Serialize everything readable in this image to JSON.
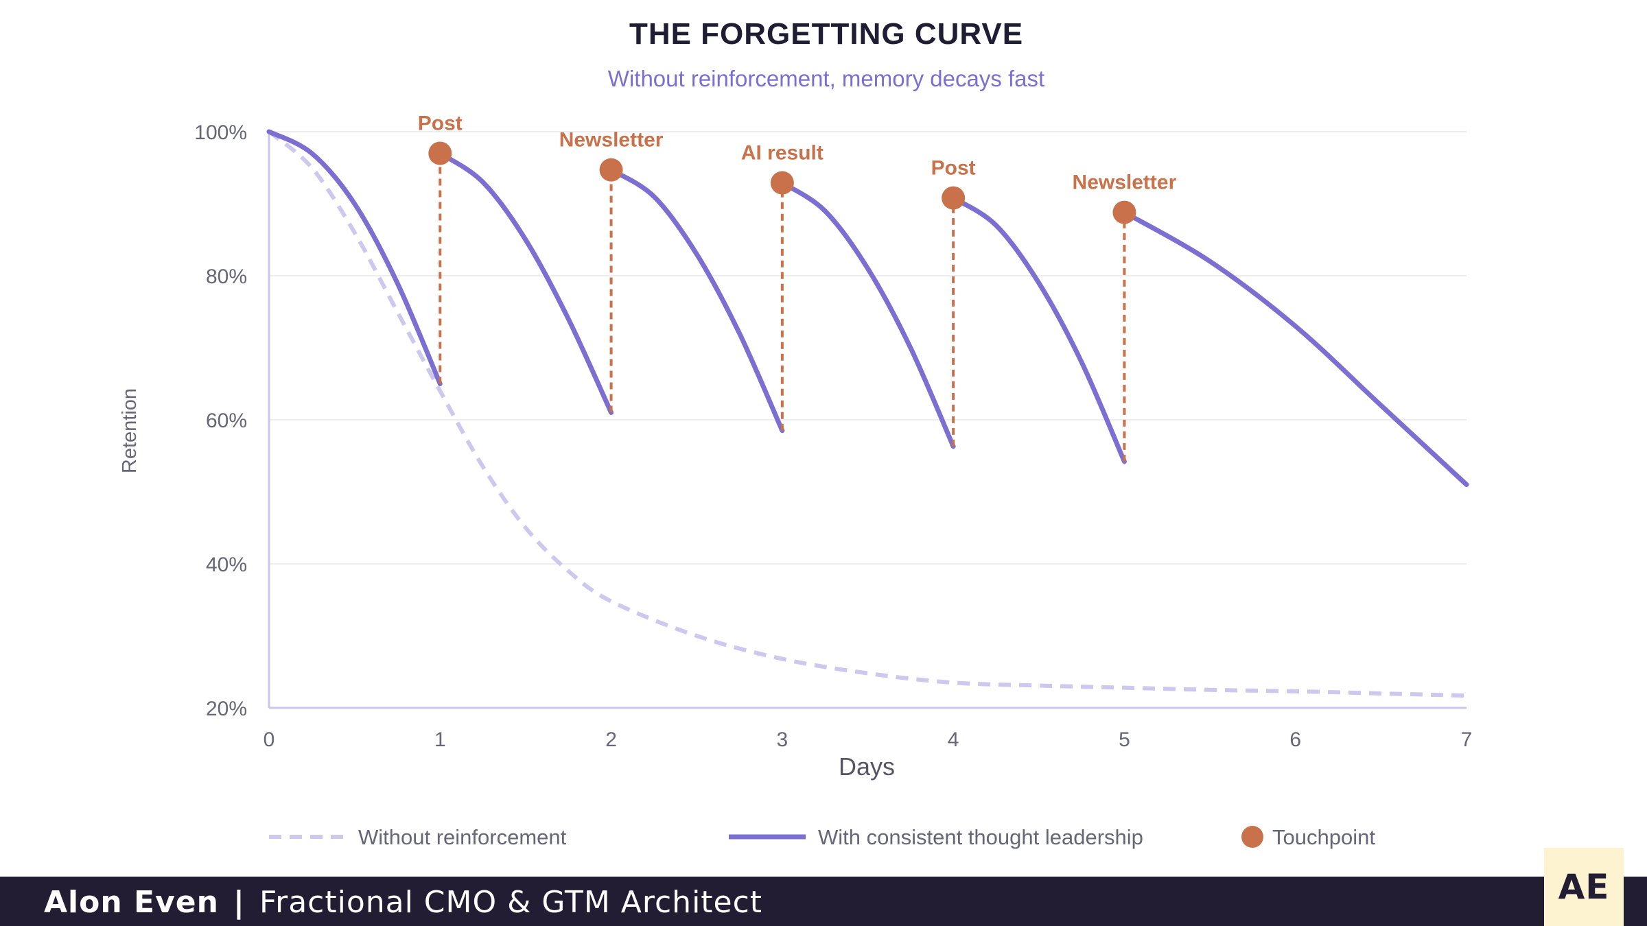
{
  "chart_data": {
    "type": "line",
    "title": "THE FORGETTING CURVE",
    "subtitle": "Without reinforcement, memory decays fast",
    "xlabel": "Days",
    "ylabel": "Retention",
    "xlim": [
      0,
      7
    ],
    "ylim": [
      20,
      100
    ],
    "x_ticks": [
      0,
      1,
      2,
      3,
      4,
      5,
      6,
      7
    ],
    "y_ticks": [
      20,
      40,
      60,
      80,
      100
    ],
    "y_tick_labels": [
      "20%",
      "40%",
      "60%",
      "80%",
      "100%"
    ],
    "grid": true,
    "legend_position": "bottom",
    "series": [
      {
        "name": "Without reinforcement",
        "style": "dashed",
        "color": "#cdc8ee",
        "x": [
          0,
          0.25,
          0.5,
          0.75,
          1,
          1.25,
          1.5,
          1.75,
          2,
          2.5,
          3,
          3.5,
          4,
          4.5,
          5,
          5.5,
          6,
          6.5,
          7
        ],
        "y": [
          100,
          95,
          86,
          75,
          64,
          53.5,
          45,
          39,
          34.8,
          30,
          26.8,
          24.8,
          23.5,
          23.1,
          22.8,
          22.5,
          22.3,
          22.0,
          21.7
        ]
      },
      {
        "name": "With consistent thought leadership",
        "style": "solid",
        "color": "#7b6fd1",
        "segments": [
          {
            "x": [
              0,
              0.25,
              0.5,
              0.75,
              1
            ],
            "y": [
              100,
              97,
              90,
              79,
              65
            ]
          },
          {
            "x": [
              1,
              1.25,
              1.5,
              1.75,
              2
            ],
            "y": [
              97,
              93,
              85,
              74,
              61
            ]
          },
          {
            "x": [
              2,
              2.25,
              2.5,
              2.75,
              3
            ],
            "y": [
              94.7,
              91,
              83,
              72,
              58.5
            ]
          },
          {
            "x": [
              3,
              3.25,
              3.5,
              3.75,
              4
            ],
            "y": [
              92.9,
              89,
              81,
              70,
              56.3
            ]
          },
          {
            "x": [
              4,
              4.25,
              4.5,
              4.75,
              5
            ],
            "y": [
              90.8,
              87,
              79,
              68,
              54.2
            ]
          },
          {
            "x": [
              5,
              5.5,
              6,
              6.5,
              7
            ],
            "y": [
              88.8,
              82,
              73,
              62,
              51
            ]
          }
        ]
      }
    ],
    "touchpoints": {
      "name": "Touchpoint",
      "color": "#c8714a",
      "points": [
        {
          "x": 1,
          "y": 97,
          "from_y": 65,
          "label": "Post"
        },
        {
          "x": 2,
          "y": 94.7,
          "from_y": 61,
          "label": "Newsletter"
        },
        {
          "x": 3,
          "y": 92.9,
          "from_y": 58.5,
          "label": "AI result"
        },
        {
          "x": 4,
          "y": 90.8,
          "from_y": 56.3,
          "label": "Post"
        },
        {
          "x": 5,
          "y": 88.8,
          "from_y": 54.2,
          "label": "Newsletter"
        }
      ]
    }
  },
  "footer": {
    "name": "Alon Even",
    "separator": "|",
    "role": "Fractional CMO & GTM Architect",
    "logo_text": "AE"
  },
  "colors": {
    "title": "#1f1d33",
    "subtitle": "#7b6fd1",
    "axis_text": "#666677",
    "grid": "#ececf2",
    "axis": "#cbc6ec",
    "footer_bg": "#231d34",
    "logo_bg": "#fdf3d0"
  }
}
